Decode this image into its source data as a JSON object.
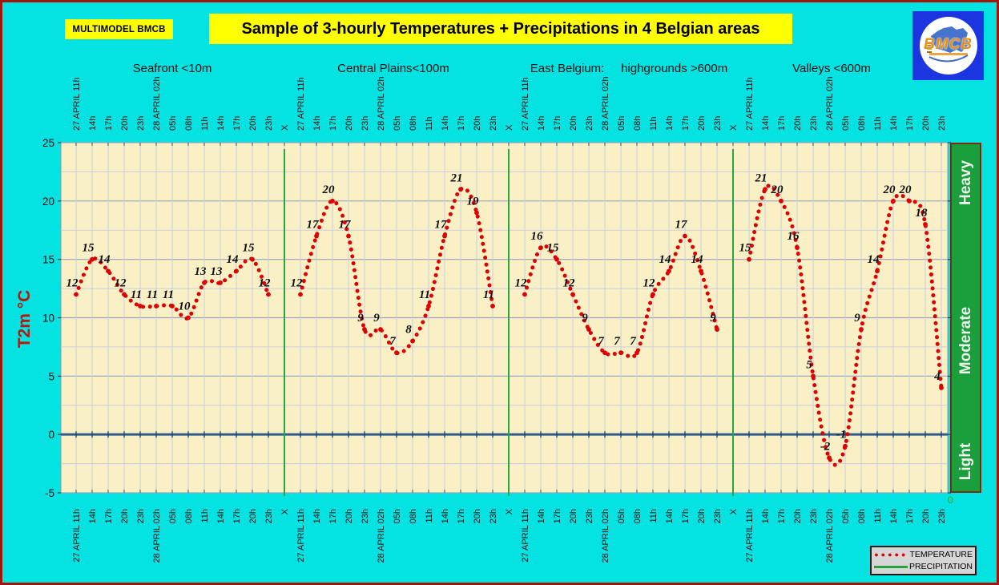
{
  "badge_label": "MULTIMODEL BMCB",
  "title": "Sample of 3-hourly Temperatures + Precipitations in 4 Belgian areas",
  "logo": {
    "text": "BMCB"
  },
  "y_axis": {
    "label": "T2m °C",
    "ticks": [
      25,
      20,
      15,
      10,
      5,
      0,
      -5
    ],
    "min": -5,
    "max": 25
  },
  "right_axis": {
    "labels": [
      "Heavy",
      "Moderate",
      "Light"
    ],
    "zero_label": "0"
  },
  "legend": {
    "items": [
      {
        "label": "TEMPERATURE",
        "sample": "red-dots"
      },
      {
        "label": "PRECIPITATION",
        "sample": "green-line"
      }
    ]
  },
  "colors": {
    "background": "#05e2e2",
    "frame_border": "#a01708",
    "plot_bg": "#faf0c6",
    "grid_minor": "#c9cedf",
    "grid_major": "#9ba3b8",
    "temperature": "#dd0000",
    "precipitation": "#2aa43c",
    "zero_line": "#315c8a",
    "value_label": "#111111",
    "scale_bar": "#1b9e3c",
    "title_bg": "#ffff00"
  },
  "chart_data": {
    "type": "line",
    "title": "Sample of 3-hourly Temperatures + Precipitations in 4 Belgian areas",
    "ylabel": "T2m °C",
    "ylim": [
      -5,
      25
    ],
    "grid": true,
    "time_labels": [
      "27 APRIL 11h",
      "14h",
      "17h",
      "20h",
      "23h",
      "28 APRIL 02h",
      "05h",
      "08h",
      "11h",
      "14h",
      "17h",
      "20h",
      "23h"
    ],
    "separator_label": "X",
    "groups": [
      {
        "name": "Seafront <10m",
        "values": [
          12,
          15,
          14,
          12,
          11,
          11,
          11,
          10,
          13,
          13,
          14,
          15,
          12
        ]
      },
      {
        "name": "Central Plains<100m",
        "values": [
          12,
          17,
          20,
          17,
          9,
          9,
          7,
          8,
          11,
          17,
          21,
          19,
          11
        ]
      },
      {
        "name": "East Belgium:     highgrounds >600m",
        "values": [
          12,
          16,
          15,
          12,
          9,
          7,
          7,
          7,
          12,
          14,
          17,
          14,
          9
        ]
      },
      {
        "name": "Valleys <600m",
        "values": [
          15,
          21,
          20,
          16,
          5,
          -2,
          -1,
          9,
          14,
          20,
          20,
          18,
          4
        ]
      }
    ],
    "series": [
      {
        "name": "TEMPERATURE",
        "style": "red-dotted"
      },
      {
        "name": "PRECIPITATION",
        "style": "green-vertical-lines-at-X",
        "visible_value": 0
      }
    ],
    "legend_position": "bottom-right"
  }
}
